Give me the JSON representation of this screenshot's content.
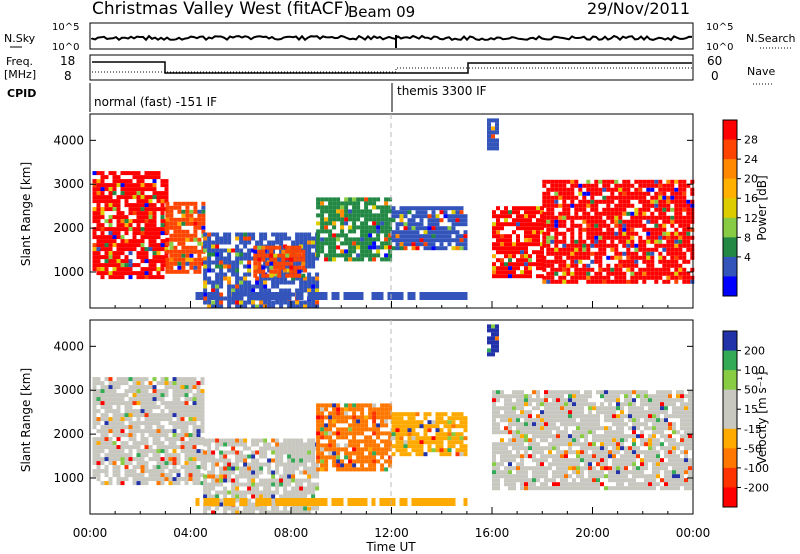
{
  "header": {
    "station": "Christmas Valley West (fitACF)",
    "beam": "Beam 09",
    "date": "29/Nov/2011"
  },
  "top_panels": {
    "nsky_label": "N.Sky",
    "nsearch_label": "N.Search",
    "noise_ticks": [
      "10^5",
      "10^0"
    ],
    "freq_label_1": "Freq.",
    "freq_label_2": "[MHz]",
    "freq_ticks": [
      "18",
      "8"
    ],
    "nave_label": "Nave",
    "nave_ticks": [
      "60",
      "0"
    ],
    "cpid_label": "CPID",
    "cpid_1": "normal (fast) -151 IF",
    "cpid_2": "themis 3300 IF"
  },
  "chart_data": [
    {
      "type": "heatmap",
      "name": "power-panel",
      "xlabel": "",
      "ylabel": "Slant Range [km]",
      "xlim": [
        0,
        24
      ],
      "ylim": [
        180,
        4600
      ],
      "yticks": [
        1000,
        2000,
        3000,
        4000
      ],
      "colorbar_label": "Power [dB]",
      "colorbar_ticks": [
        "28",
        "24",
        "20",
        "16",
        "12",
        "8",
        "4"
      ],
      "colorbar_colors": [
        "#ff0000",
        "#ff4400",
        "#ff8800",
        "#ffb000",
        "#ddcc00",
        "#88cc44",
        "#228844",
        "#3355bb",
        "#0000ff"
      ],
      "regions": [
        {
          "x0": 0.1,
          "x1": 3.0,
          "y0": 900,
          "y1": 3300,
          "dominant": "#ff0000"
        },
        {
          "x0": 3.0,
          "x1": 4.5,
          "y0": 1000,
          "y1": 2600,
          "dominant": "#ff4400"
        },
        {
          "x0": 4.5,
          "x1": 9.0,
          "y0": 200,
          "y1": 1900,
          "dominant": "#3355bb"
        },
        {
          "x0": 6.5,
          "x1": 8.5,
          "y0": 900,
          "y1": 1600,
          "dominant": "#ff4400"
        },
        {
          "x0": 9.0,
          "x1": 12.0,
          "y0": 1300,
          "y1": 2700,
          "dominant": "#228844"
        },
        {
          "x0": 12.0,
          "x1": 15.0,
          "y0": 1500,
          "y1": 2500,
          "dominant": "#3355bb"
        },
        {
          "x0": 15.8,
          "x1": 16.2,
          "y0": 3800,
          "y1": 4500,
          "dominant": "#3355bb"
        },
        {
          "x0": 16.0,
          "x1": 18.0,
          "y0": 900,
          "y1": 2500,
          "dominant": "#ff0000"
        },
        {
          "x0": 18.0,
          "x1": 23.9,
          "y0": 800,
          "y1": 3100,
          "dominant": "#ff0000"
        }
      ]
    },
    {
      "type": "heatmap",
      "name": "velocity-panel",
      "xlabel": "Time UT",
      "ylabel": "Slant Range [km]",
      "xlim": [
        0,
        24
      ],
      "ylim": [
        180,
        4600
      ],
      "xticks": [
        "00:00",
        "04:00",
        "08:00",
        "12:00",
        "16:00",
        "20:00",
        "00:00"
      ],
      "yticks": [
        1000,
        2000,
        3000,
        4000
      ],
      "colorbar_label": "Velocity [m s⁻¹]",
      "colorbar_ticks": [
        "200",
        "100",
        "50",
        "15",
        "-15",
        "-50",
        "-100",
        "-200"
      ],
      "colorbar_colors": [
        "#2233aa",
        "#33aa55",
        "#88cc44",
        "#c8c8c0",
        "#c8c8c0",
        "#ffaa00",
        "#ff7700",
        "#ff3300",
        "#ff0000"
      ],
      "regions": [
        {
          "x0": 0.1,
          "x1": 4.5,
          "y0": 900,
          "y1": 3300,
          "dominant": "#c8c8c0"
        },
        {
          "x0": 4.5,
          "x1": 9.0,
          "y0": 200,
          "y1": 1900,
          "dominant": "#c8c8c0"
        },
        {
          "x0": 9.0,
          "x1": 12.0,
          "y0": 1200,
          "y1": 2700,
          "dominant": "#ff7700"
        },
        {
          "x0": 12.0,
          "x1": 15.0,
          "y0": 1500,
          "y1": 2500,
          "dominant": "#ffaa00"
        },
        {
          "x0": 15.8,
          "x1": 16.2,
          "y0": 3800,
          "y1": 4500,
          "dominant": "#2233aa"
        },
        {
          "x0": 16.0,
          "x1": 23.9,
          "y0": 800,
          "y1": 3000,
          "dominant": "#c8c8c0"
        }
      ]
    }
  ]
}
